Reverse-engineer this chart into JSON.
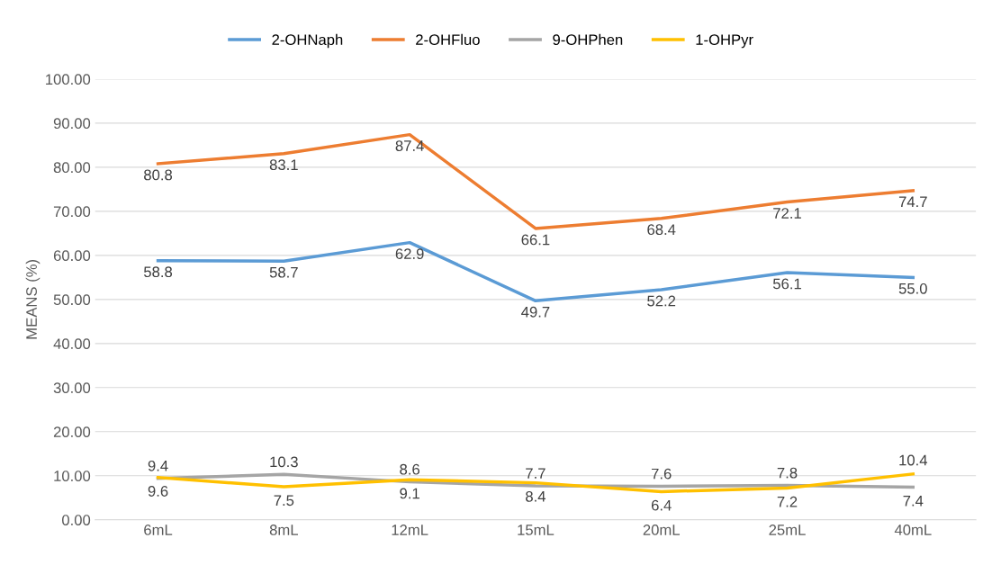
{
  "chart_data": {
    "type": "line",
    "ylabel": "MEANS (%)",
    "categories": [
      "6mL",
      "8mL",
      "12mL",
      "15mL",
      "20mL",
      "25mL",
      "40mL"
    ],
    "series": [
      {
        "name": "2-OHNaph",
        "color": "#5b9bd5",
        "values": [
          58.8,
          58.7,
          62.9,
          49.7,
          52.2,
          56.1,
          55.0
        ],
        "value_labels": [
          "58.8",
          "58.7",
          "62.9",
          "49.7",
          "52.2",
          "56.1",
          "55.0"
        ]
      },
      {
        "name": "2-OHFluo",
        "color": "#ed7d31",
        "values": [
          80.8,
          83.1,
          87.4,
          66.1,
          68.4,
          72.1,
          74.7
        ],
        "value_labels": [
          "80.8",
          "83.1",
          "87.4",
          "66.1",
          "68.4",
          "72.1",
          "74.7"
        ]
      },
      {
        "name": "9-OHPhen",
        "color": "#a5a5a5",
        "values": [
          9.4,
          10.3,
          8.6,
          7.7,
          7.6,
          7.8,
          7.4
        ],
        "value_labels": [
          "9.4",
          "10.3",
          "8.6",
          "7.7",
          "7.6",
          "7.8",
          "7.4"
        ]
      },
      {
        "name": "1-OHPyr",
        "color": "#ffc000",
        "values": [
          9.6,
          7.5,
          9.1,
          8.4,
          6.4,
          7.2,
          10.4
        ],
        "value_labels": [
          "9.6",
          "7.5",
          "9.1",
          "8.4",
          "6.4",
          "7.2",
          "10.4"
        ]
      }
    ],
    "ylim": [
      0,
      100
    ],
    "yticks": [
      {
        "value": 0,
        "label": "0.00"
      },
      {
        "value": 10,
        "label": "10.00"
      },
      {
        "value": 20,
        "label": "20.00"
      },
      {
        "value": 30,
        "label": "30.00"
      },
      {
        "value": 40,
        "label": "40.00"
      },
      {
        "value": 50,
        "label": "50.00"
      },
      {
        "value": 60,
        "label": "60.00"
      },
      {
        "value": 70,
        "label": "70.00"
      },
      {
        "value": 80,
        "label": "80.00"
      },
      {
        "value": 90,
        "label": "90.00"
      },
      {
        "value": 100,
        "label": "100.00"
      }
    ],
    "grid": "y",
    "legend": "top",
    "line_style": "solid"
  }
}
